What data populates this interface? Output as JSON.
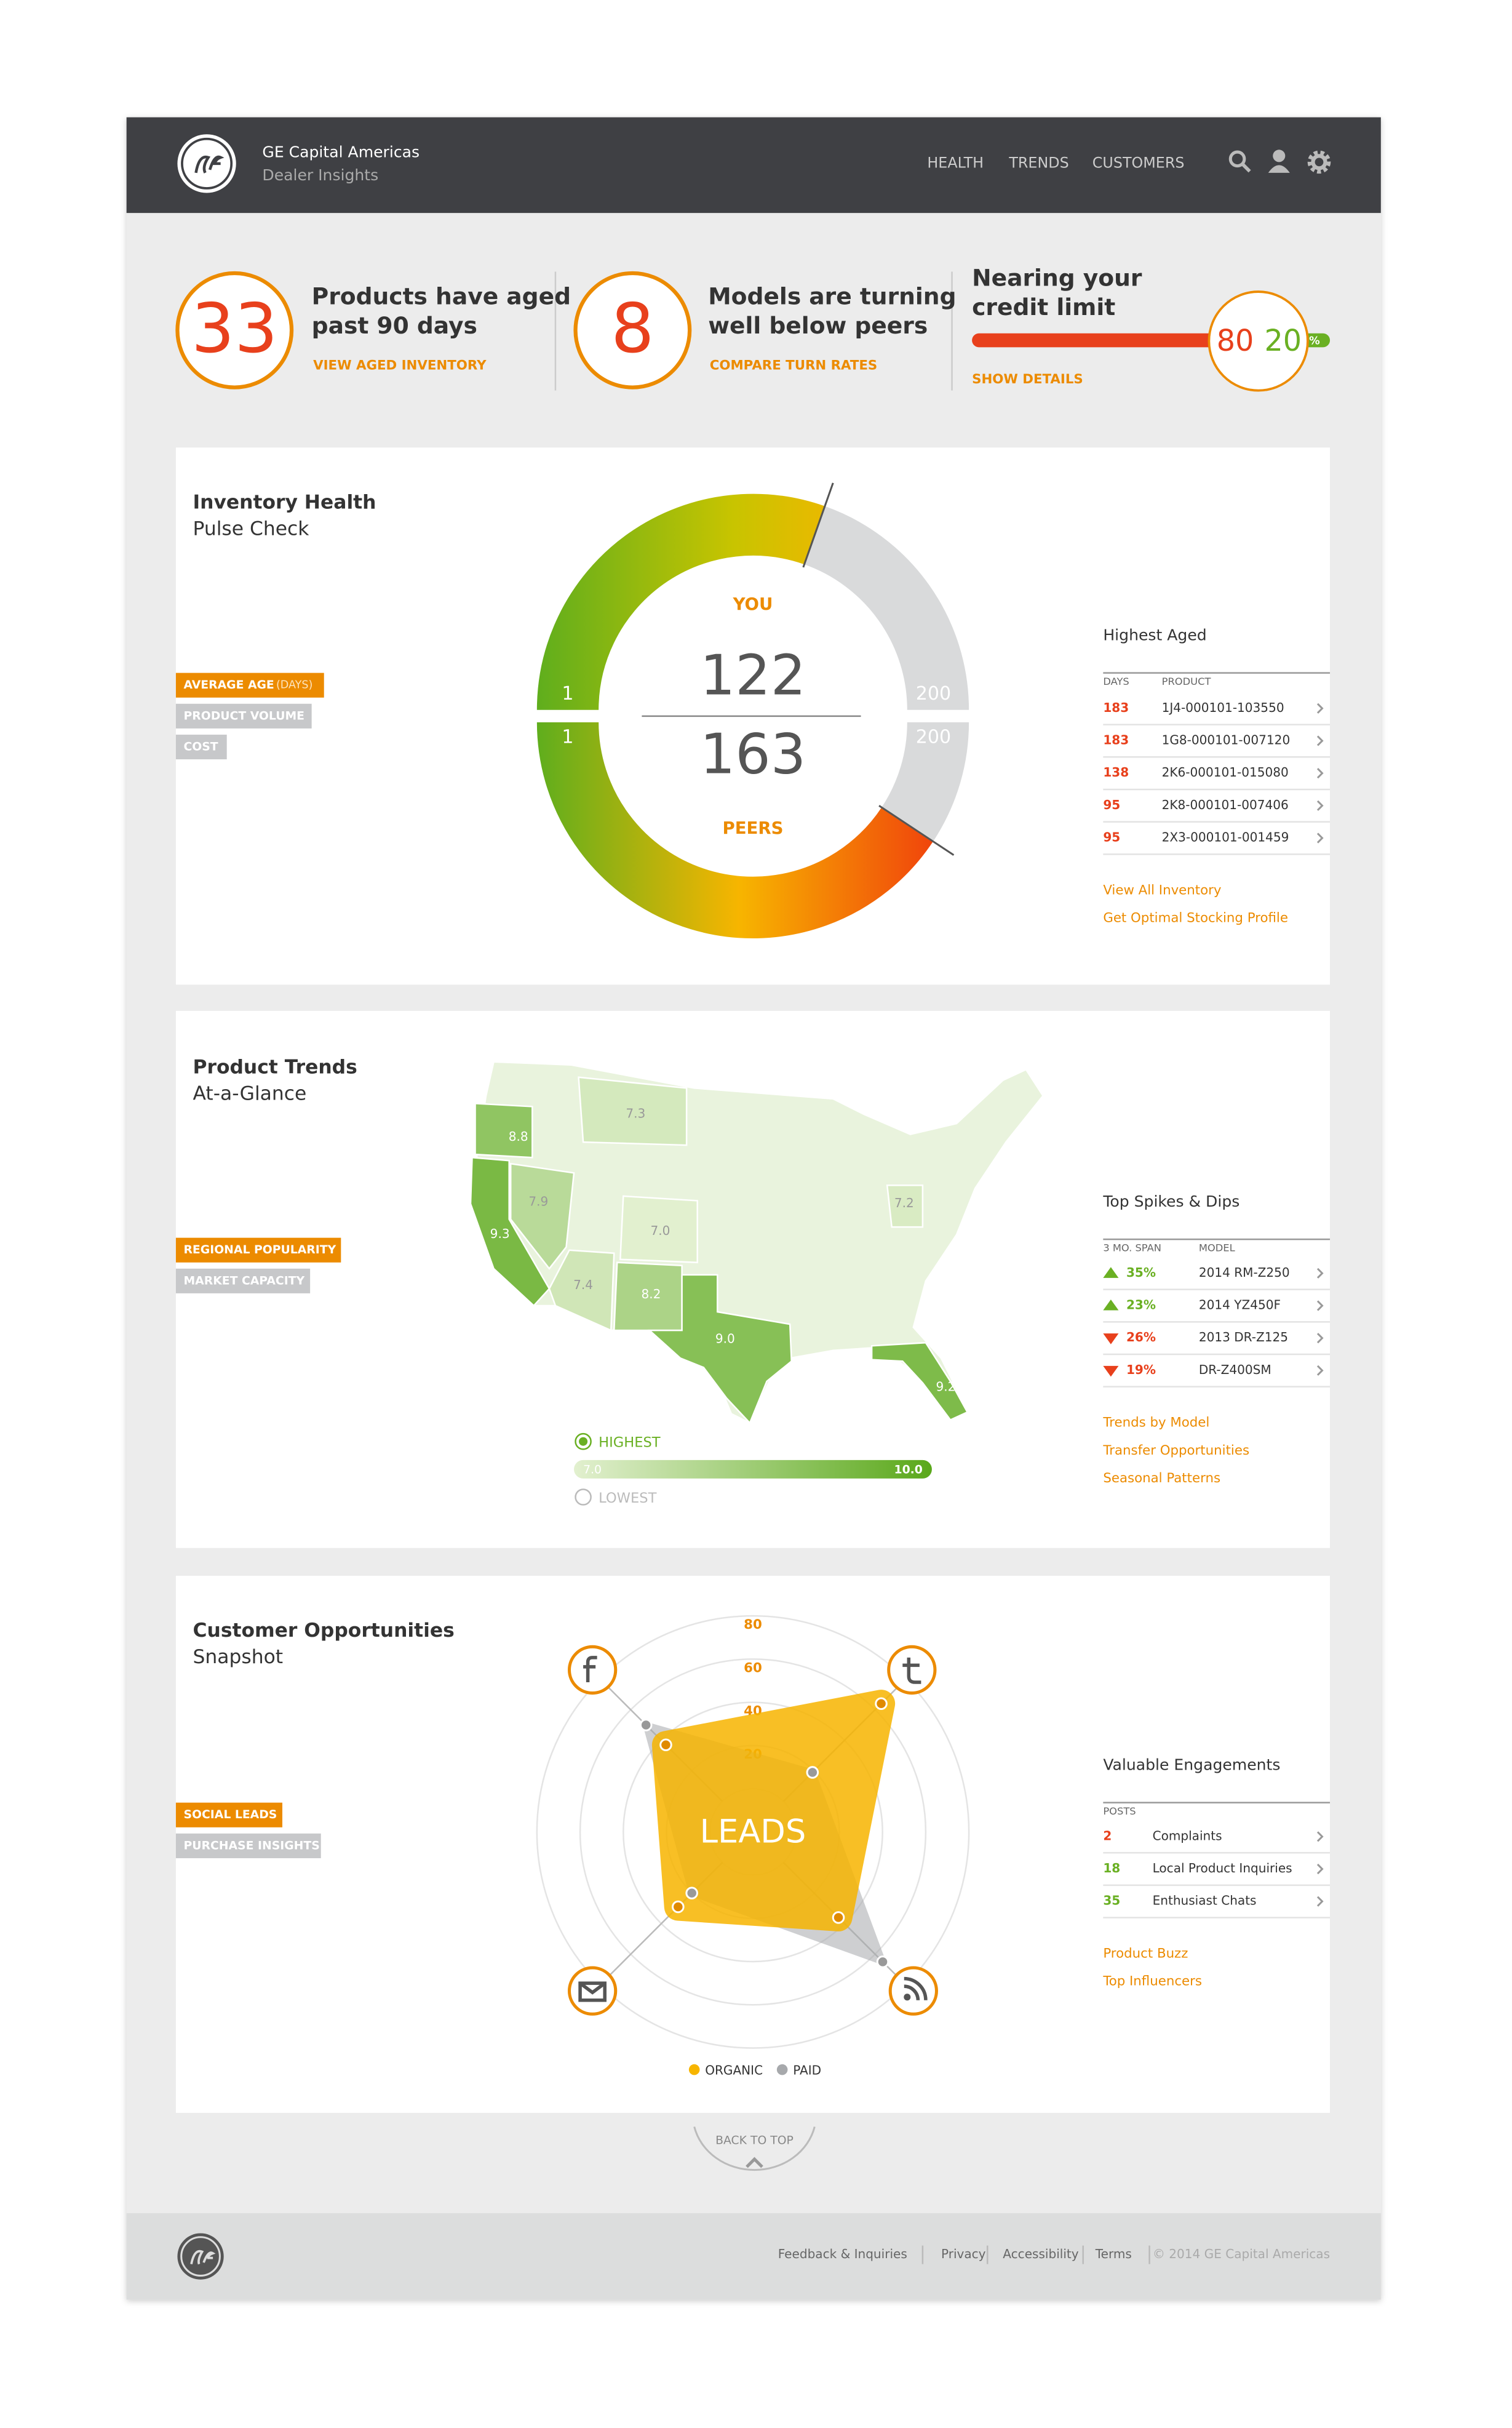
{
  "header": {
    "brand": "GE Capital Americas",
    "product": "Dealer Insights",
    "nav": [
      "HEALTH",
      "TRENDS",
      "CUSTOMERS"
    ]
  },
  "summary": [
    {
      "value": 33,
      "lines": [
        "Products have aged",
        "past 90 days"
      ],
      "link": "VIEW AGED INVENTORY"
    },
    {
      "value": 8,
      "lines": [
        "Models are turning",
        "well below peers"
      ],
      "link": "COMPARE TURN RATES"
    }
  ],
  "credit": {
    "lines": [
      "Nearing your",
      "credit limit"
    ],
    "used": 80,
    "available": 20,
    "unit": "%",
    "link": "SHOW DETAILS"
  },
  "inventory": {
    "title": "Inventory Health",
    "subtitle": "Pulse Check",
    "filters": [
      "AVERAGE AGE",
      "PRODUCT VOLUME",
      "COST"
    ],
    "filter_note": "(DAYS)",
    "gauge": {
      "you_label": "YOU",
      "peers_label": "PEERS",
      "you": 122,
      "peers": 163,
      "min": 1,
      "max": 200
    },
    "table": {
      "title": "Highest Aged",
      "columns": [
        "DAYS",
        "PRODUCT"
      ],
      "rows": [
        [
          183,
          "1J4-000101-103550"
        ],
        [
          183,
          "1G8-000101-007120"
        ],
        [
          138,
          "2K6-000101-015080"
        ],
        [
          95,
          "2K8-000101-007406"
        ],
        [
          95,
          "2X3-000101-001459"
        ]
      ]
    },
    "links": [
      "View All Inventory",
      "Get Optimal Stocking Profile"
    ]
  },
  "trends": {
    "title": "Product Trends",
    "subtitle": "At-a-Glance",
    "filters": [
      "REGIONAL POPULARITY",
      "MARKET CAPACITY"
    ],
    "regions": [
      "8.8",
      "7.3",
      "9.3",
      "7.9",
      "7.0",
      "7.4",
      "8.2",
      "9.0",
      "7.2",
      "9.2"
    ],
    "scale": {
      "high_label": "HIGHEST",
      "low_label": "LOWEST",
      "min": "7.0",
      "max": "10.0"
    },
    "table": {
      "title": "Top Spikes & Dips",
      "columns": [
        "3 MO. SPAN",
        "MODEL"
      ],
      "rows": [
        {
          "change": "35%",
          "model": "2014 RM-Z250",
          "direction": "up"
        },
        {
          "change": "23%",
          "model": "2014 YZ450F",
          "direction": "up"
        },
        {
          "change": "26%",
          "model": "2013 DR-Z125",
          "direction": "down"
        },
        {
          "change": "19%",
          "model": "DR-Z400SM",
          "direction": "down"
        }
      ]
    },
    "links": [
      "Trends by Model",
      "Transfer Opportunities",
      "Seasonal Patterns"
    ]
  },
  "customers": {
    "title": "Customer Opportunities",
    "subtitle": "Snapshot",
    "filters": [
      "SOCIAL LEADS",
      "PURCHASE INSIGHTS"
    ],
    "radar": {
      "center_label": "LEADS",
      "ticks": [
        20,
        40,
        60,
        80
      ],
      "series": [
        {
          "name": "ORGANIC",
          "color": "#f7b500",
          "values": [
            37,
            64,
            36,
            29
          ]
        },
        {
          "name": "PAID",
          "color": "#a7a9ac",
          "values": [
            50,
            19,
            65,
            20
          ]
        }
      ]
    },
    "table": {
      "title": "Valuable Engagements",
      "columns": [
        "POSTS"
      ],
      "rows": [
        {
          "count": 2,
          "label": "Complaints",
          "color": "#e8401c"
        },
        {
          "count": 18,
          "label": "Local Product Inquiries",
          "color": "#6ab023"
        },
        {
          "count": 35,
          "label": "Enthusiast Chats",
          "color": "#6ab023"
        }
      ]
    },
    "links": [
      "Product Buzz",
      "Top Influencers"
    ]
  },
  "back_to_top": "BACK TO TOP",
  "footer": {
    "links": [
      "Feedback & Inquiries",
      "Privacy",
      "Accessibility",
      "Terms"
    ],
    "copyright": "© 2014 GE Capital Americas"
  }
}
